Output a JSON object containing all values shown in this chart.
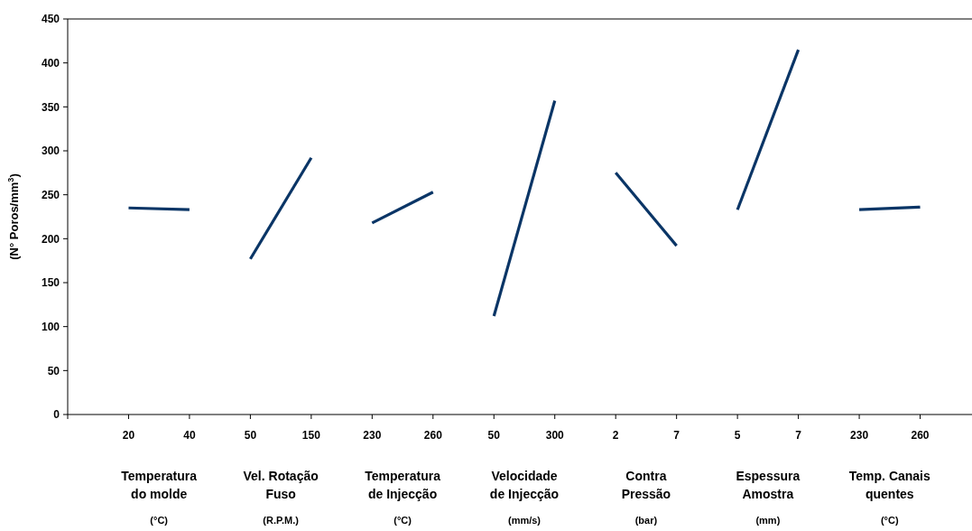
{
  "chart_data": {
    "type": "line",
    "ylabel": "(N° Poros/mm$^{3}$)",
    "categories": [
      "20",
      "40",
      "50",
      "150",
      "230",
      "260",
      "50",
      "300",
      "2",
      "7",
      "5",
      "7",
      "230",
      "260"
    ],
    "series": [
      {
        "color": "#0a3566",
        "values": [
          235,
          233,
          null,
          null,
          null,
          null,
          null,
          null,
          null,
          null,
          null,
          null,
          null,
          null
        ]
      },
      {
        "color": "#0a3566",
        "values": [
          null,
          null,
          177,
          292,
          null,
          null,
          null,
          null,
          null,
          null,
          null,
          null,
          null,
          null
        ]
      },
      {
        "color": "#0a3566",
        "values": [
          null,
          null,
          null,
          null,
          218,
          253,
          null,
          null,
          null,
          null,
          null,
          null,
          null,
          null
        ]
      },
      {
        "color": "#0a3566",
        "values": [
          null,
          null,
          null,
          null,
          null,
          null,
          112,
          357,
          null,
          null,
          null,
          null,
          null,
          null
        ]
      },
      {
        "color": "#0a3566",
        "values": [
          null,
          null,
          null,
          null,
          null,
          null,
          null,
          null,
          275,
          192,
          null,
          null,
          null,
          null
        ]
      },
      {
        "color": "#0a3566",
        "values": [
          null,
          null,
          null,
          null,
          null,
          null,
          null,
          null,
          null,
          null,
          233,
          415,
          null,
          null
        ]
      },
      {
        "color": "#0a3566",
        "values": [
          null,
          null,
          null,
          null,
          null,
          null,
          null,
          null,
          null,
          null,
          null,
          null,
          233,
          236
        ]
      }
    ],
    "annotations": [
      "Temperatura\ndo molde\n(°C)",
      "Vel. Rotação\nFuso\n(R.P.M.)",
      "Temperatura\nde Injecção\n(°C)",
      "Velocidade\nde Injecção\n(mm/s)",
      "Contra\nPressão\n(bar)",
      "Espessura\nAmostra\n(mm)",
      "Temp. Canais\nquentes\n(°C)"
    ],
    "ylim": [
      0,
      450
    ],
    "yticks": [
      0,
      50,
      100,
      150,
      200,
      250,
      300,
      350,
      400,
      450
    ],
    "grid": false,
    "marker": "none",
    "line_style": "solid"
  }
}
